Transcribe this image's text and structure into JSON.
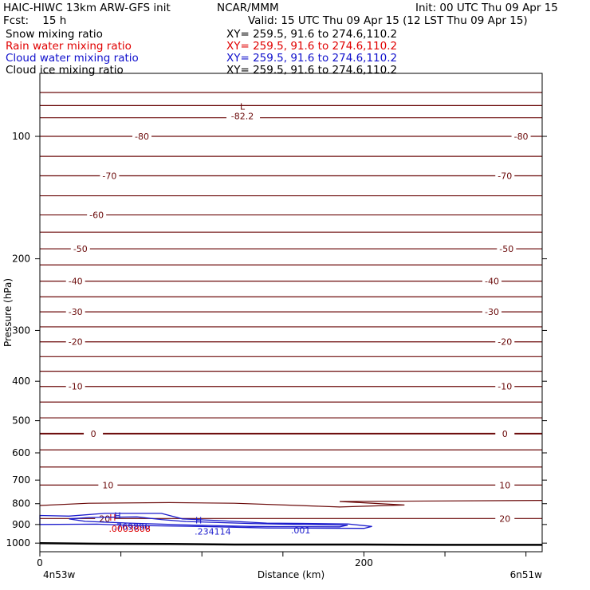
{
  "header": {
    "title_left": "HAIC-HIWC 13km ARW-GFS init",
    "title_center": "NCAR/MMM",
    "init": "Init: 00 UTC Thu 09 Apr 15",
    "fcst": "Fcst:    15 h",
    "valid": "Valid: 15 UTC Thu 09 Apr 15 (12 LST Thu 09 Apr 15)"
  },
  "fields": [
    {
      "name": "Snow mixing ratio",
      "xy": "XY= 259.5, 91.6 to 274.6,110.2",
      "color": "#000000"
    },
    {
      "name": "Rain water mixing ratio",
      "xy": "XY= 259.5, 91.6 to 274.6,110.2",
      "color": "#e00000"
    },
    {
      "name": "Cloud water mixing ratio",
      "xy": "XY= 259.5, 91.6 to 274.6,110.2",
      "color": "#1010cc"
    },
    {
      "name": "Cloud ice mixing ratio",
      "xy": "XY= 259.5, 91.6 to 274.6,110.2",
      "color": "#000000"
    }
  ],
  "axes": {
    "xlabel": "Distance (km)",
    "ylabel": "Pressure (hPa)",
    "left_endpoint": "4n53w",
    "right_endpoint": "6n51w"
  },
  "colors": {
    "temperature": "#6b0a0a",
    "cloud_water": "#1a1acc",
    "rain": "#e00000",
    "terrain": "#000000"
  },
  "chart_data": {
    "type": "line",
    "x_range": [
      0,
      310
    ],
    "y_range": [
      1050,
      70
    ],
    "y_scale": "log-pressure",
    "x_ticks": [
      0,
      50,
      100,
      150,
      200,
      250,
      300
    ],
    "x_tick_labels": [
      {
        "x": 0,
        "label": "0"
      },
      {
        "x": 200,
        "label": "200"
      }
    ],
    "y_ticks": [
      100,
      200,
      300,
      400,
      500,
      600,
      700,
      800,
      900,
      1000
    ],
    "temperature_isotherms": [
      {
        "p": 78
      },
      {
        "p": 84
      },
      {
        "p": 90,
        "label": "-82.2"
      },
      {
        "p": 100,
        "label": "-80"
      },
      {
        "p": 112
      },
      {
        "p": 125,
        "label": "-70"
      },
      {
        "p": 140
      },
      {
        "p": 156,
        "label": "-60"
      },
      {
        "p": 172
      },
      {
        "p": 189,
        "label": "-50"
      },
      {
        "p": 207
      },
      {
        "p": 227,
        "label": "-40"
      },
      {
        "p": 248
      },
      {
        "p": 270,
        "label": "-30"
      },
      {
        "p": 294
      },
      {
        "p": 320,
        "label": "-20"
      },
      {
        "p": 348
      },
      {
        "p": 378
      },
      {
        "p": 412,
        "label": "-10"
      },
      {
        "p": 450
      },
      {
        "p": 492
      },
      {
        "p": 538,
        "label": "0"
      },
      {
        "p": 590
      },
      {
        "p": 650
      },
      {
        "p": 720,
        "label": "10"
      },
      {
        "p": 870,
        "label": "20"
      }
    ],
    "isotherm_label_positions": {
      "-80": [
        63,
        297
      ],
      "-70": [
        43,
        287
      ],
      "-60": [
        35,
        0
      ],
      "-50": [
        25,
        288
      ],
      "-40": [
        22,
        279
      ],
      "-30": [
        22,
        279
      ],
      "-20": [
        22,
        287
      ],
      "-10": [
        22,
        287
      ],
      "0": [
        33,
        287
      ],
      "10": [
        42,
        287
      ],
      "20": [
        40,
        287
      ]
    },
    "extrema": [
      {
        "type": "L",
        "x": 125,
        "p": 86,
        "value": "-82.2"
      },
      {
        "type": "H",
        "x": 48,
        "p": 870,
        "value": ".769896"
      },
      {
        "type": "H",
        "x": 45,
        "p": 880,
        "value": ".0003808"
      },
      {
        "type": "H",
        "x": 98,
        "p": 895,
        "value": ".234114"
      }
    ],
    "cloud_water_contours": [
      {
        "level": ".001"
      }
    ],
    "terrain_pressure": [
      {
        "x": 0,
        "p": 1000
      },
      {
        "x": 30,
        "p": 1003
      },
      {
        "x": 80,
        "p": 1005
      },
      {
        "x": 120,
        "p": 1008
      },
      {
        "x": 200,
        "p": 1008
      },
      {
        "x": 250,
        "p": 1010
      },
      {
        "x": 310,
        "p": 1010
      }
    ]
  }
}
